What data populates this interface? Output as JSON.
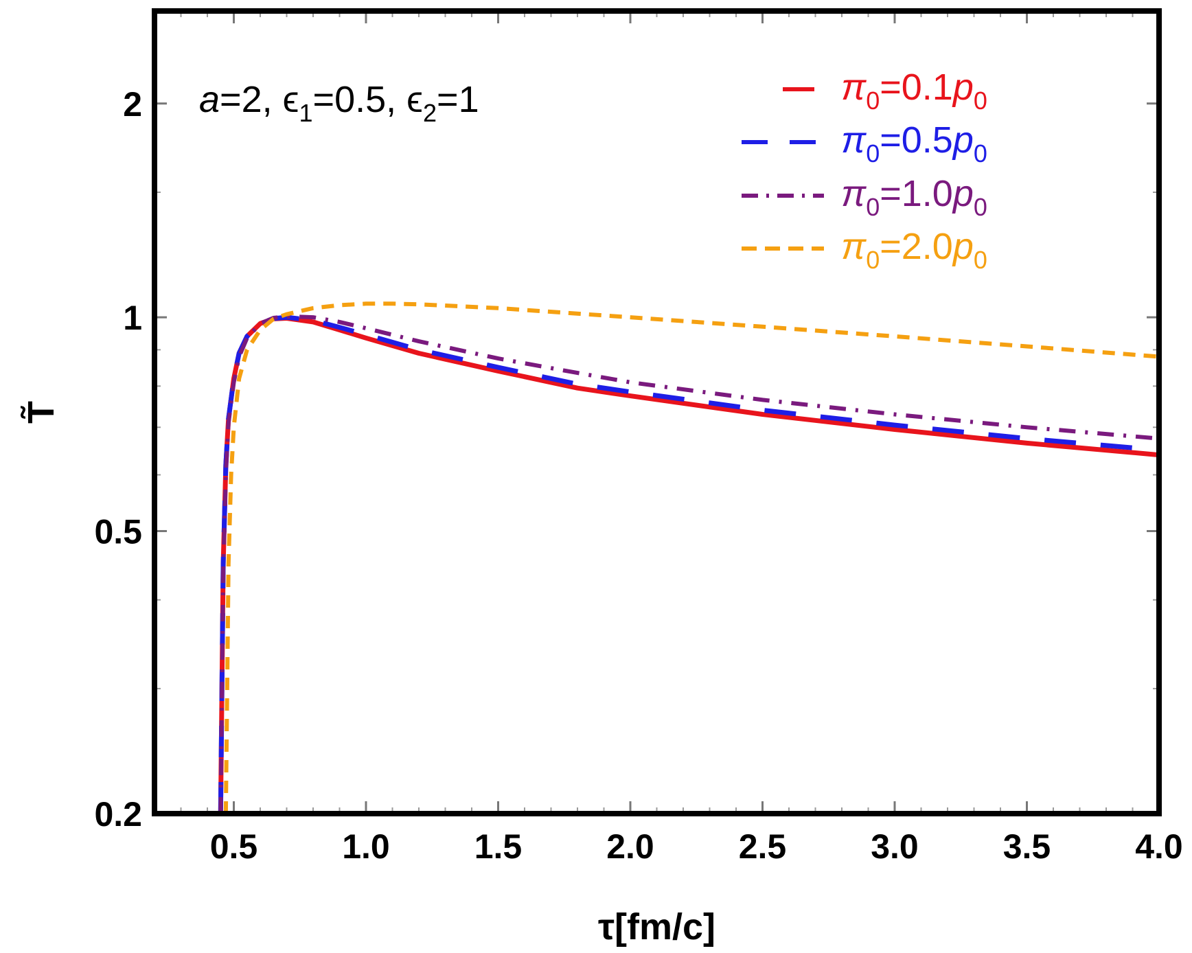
{
  "chart_data": {
    "type": "line",
    "xlabel": "τ[fm/c]",
    "ylabel": "T̃",
    "y_scale": "log",
    "xlim": [
      0.2,
      4.0
    ],
    "ylim": [
      0.2,
      2.7
    ],
    "x_ticks": [
      0.5,
      1.0,
      1.5,
      2.0,
      2.5,
      3.0,
      3.5,
      4.0
    ],
    "x_tick_labels": [
      "0.5",
      "1.0",
      "1.5",
      "2.0",
      "2.5",
      "3.0",
      "3.5",
      "4.0"
    ],
    "y_ticks": [
      0.2,
      0.5,
      1,
      2
    ],
    "y_tick_labels": [
      "0.2",
      "0.5",
      "1",
      "2"
    ],
    "annotation": {
      "a": "a",
      "a_val": "=2, ",
      "eps1": "ϵ",
      "eps1_sub": "1",
      "eps1_val": "=0.5, ",
      "eps2": "ϵ",
      "eps2_sub": "2",
      "eps2_val": "=1"
    },
    "legend_position": "top-right",
    "series": [
      {
        "name": "π0=0.1p0",
        "label_pi": "π",
        "label_sub": "0",
        "label_mid": "=0.1",
        "label_p": "p",
        "label_sub2": "0",
        "color": "#e8141c",
        "dash": "solid",
        "x": [
          0.45,
          0.46,
          0.47,
          0.48,
          0.5,
          0.52,
          0.55,
          0.6,
          0.65,
          0.7,
          0.8,
          0.9,
          1.0,
          1.2,
          1.5,
          1.8,
          2.0,
          2.5,
          3.0,
          3.5,
          4.0
        ],
        "y": [
          0.2,
          0.45,
          0.62,
          0.72,
          0.82,
          0.89,
          0.94,
          0.98,
          0.995,
          0.997,
          0.985,
          0.96,
          0.935,
          0.89,
          0.84,
          0.795,
          0.775,
          0.73,
          0.695,
          0.665,
          0.64
        ]
      },
      {
        "name": "π0=0.5p0",
        "label_pi": "π",
        "label_sub": "0",
        "label_mid": "=0.5",
        "label_p": "p",
        "label_sub2": "0",
        "color": "#1e1ee6",
        "dash": "long",
        "x": [
          0.45,
          0.46,
          0.47,
          0.48,
          0.5,
          0.52,
          0.55,
          0.6,
          0.65,
          0.7,
          0.8,
          0.9,
          1.0,
          1.2,
          1.5,
          1.8,
          2.0,
          2.5,
          3.0,
          3.5,
          4.0
        ],
        "y": [
          0.2,
          0.45,
          0.62,
          0.72,
          0.82,
          0.89,
          0.94,
          0.98,
          0.996,
          1.0,
          0.99,
          0.968,
          0.945,
          0.9,
          0.85,
          0.805,
          0.785,
          0.74,
          0.705,
          0.675,
          0.65
        ]
      },
      {
        "name": "π0=1.0p0",
        "label_pi": "π",
        "label_sub": "0",
        "label_mid": "=1.0",
        "label_p": "p",
        "label_sub2": "0",
        "color": "#7a1a7e",
        "dash": "dashdot",
        "x": [
          0.45,
          0.46,
          0.47,
          0.48,
          0.5,
          0.52,
          0.55,
          0.6,
          0.65,
          0.7,
          0.8,
          0.9,
          1.0,
          1.2,
          1.5,
          1.8,
          2.0,
          2.5,
          3.0,
          3.5,
          4.0
        ],
        "y": [
          0.2,
          0.44,
          0.6,
          0.71,
          0.81,
          0.88,
          0.935,
          0.98,
          0.998,
          1.003,
          1.0,
          0.985,
          0.965,
          0.925,
          0.875,
          0.835,
          0.81,
          0.765,
          0.73,
          0.7,
          0.675
        ]
      },
      {
        "name": "π0=2.0p0",
        "label_pi": "π",
        "label_sub": "0",
        "label_mid": "=2.0",
        "label_p": "p",
        "label_sub2": "0",
        "color": "#f5a011",
        "dash": "short",
        "x": [
          0.47,
          0.48,
          0.49,
          0.5,
          0.52,
          0.55,
          0.6,
          0.65,
          0.7,
          0.8,
          0.9,
          1.0,
          1.1,
          1.2,
          1.5,
          2.0,
          2.5,
          3.0,
          3.5,
          4.0
        ],
        "y": [
          0.2,
          0.45,
          0.6,
          0.7,
          0.82,
          0.9,
          0.96,
          0.995,
          1.01,
          1.03,
          1.04,
          1.045,
          1.045,
          1.043,
          1.03,
          1.0,
          0.97,
          0.94,
          0.91,
          0.88
        ]
      }
    ]
  }
}
